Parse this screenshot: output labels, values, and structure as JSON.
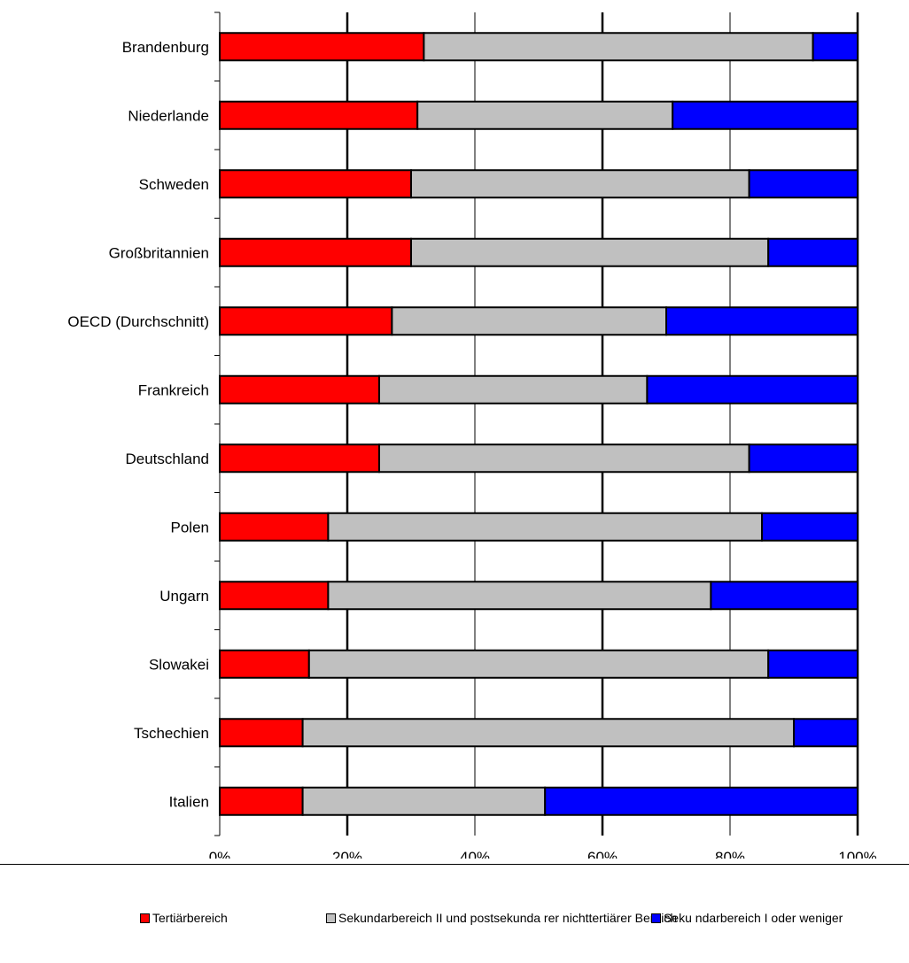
{
  "chart_data": {
    "type": "bar",
    "orientation": "horizontal",
    "stacked": "percent",
    "categories": [
      "Brandenburg",
      "Niederlande",
      "Schweden",
      "Großbritannien",
      "OECD (Durchschnitt)",
      "Frankreich",
      "Deutschland",
      "Polen",
      "Ungarn",
      "Slowakei",
      "Tschechien",
      "Italien"
    ],
    "series": [
      {
        "name": "Tertiärbereich",
        "color": "#ff0000",
        "values": [
          32,
          31,
          30,
          30,
          27,
          25,
          25,
          17,
          17,
          14,
          13,
          13
        ]
      },
      {
        "name": "Sekundarbereich II und postsekunda rer nichttertiärer Bereich",
        "color": "#c0c0c0",
        "values": [
          61,
          40,
          53,
          56,
          43,
          42,
          58,
          68,
          60,
          72,
          77,
          38
        ]
      },
      {
        "name": "Seku ndarbereich I oder weniger",
        "color": "#0000ff",
        "values": [
          7,
          29,
          17,
          14,
          30,
          33,
          17,
          15,
          23,
          14,
          10,
          49
        ]
      }
    ],
    "x_ticks": [
      "0%",
      "20%",
      "40%",
      "60%",
      "80%",
      "100%"
    ],
    "xlim": [
      0,
      100
    ],
    "grid": "vertical",
    "legend_position": "bottom",
    "title": "",
    "xlabel": "",
    "ylabel": ""
  }
}
